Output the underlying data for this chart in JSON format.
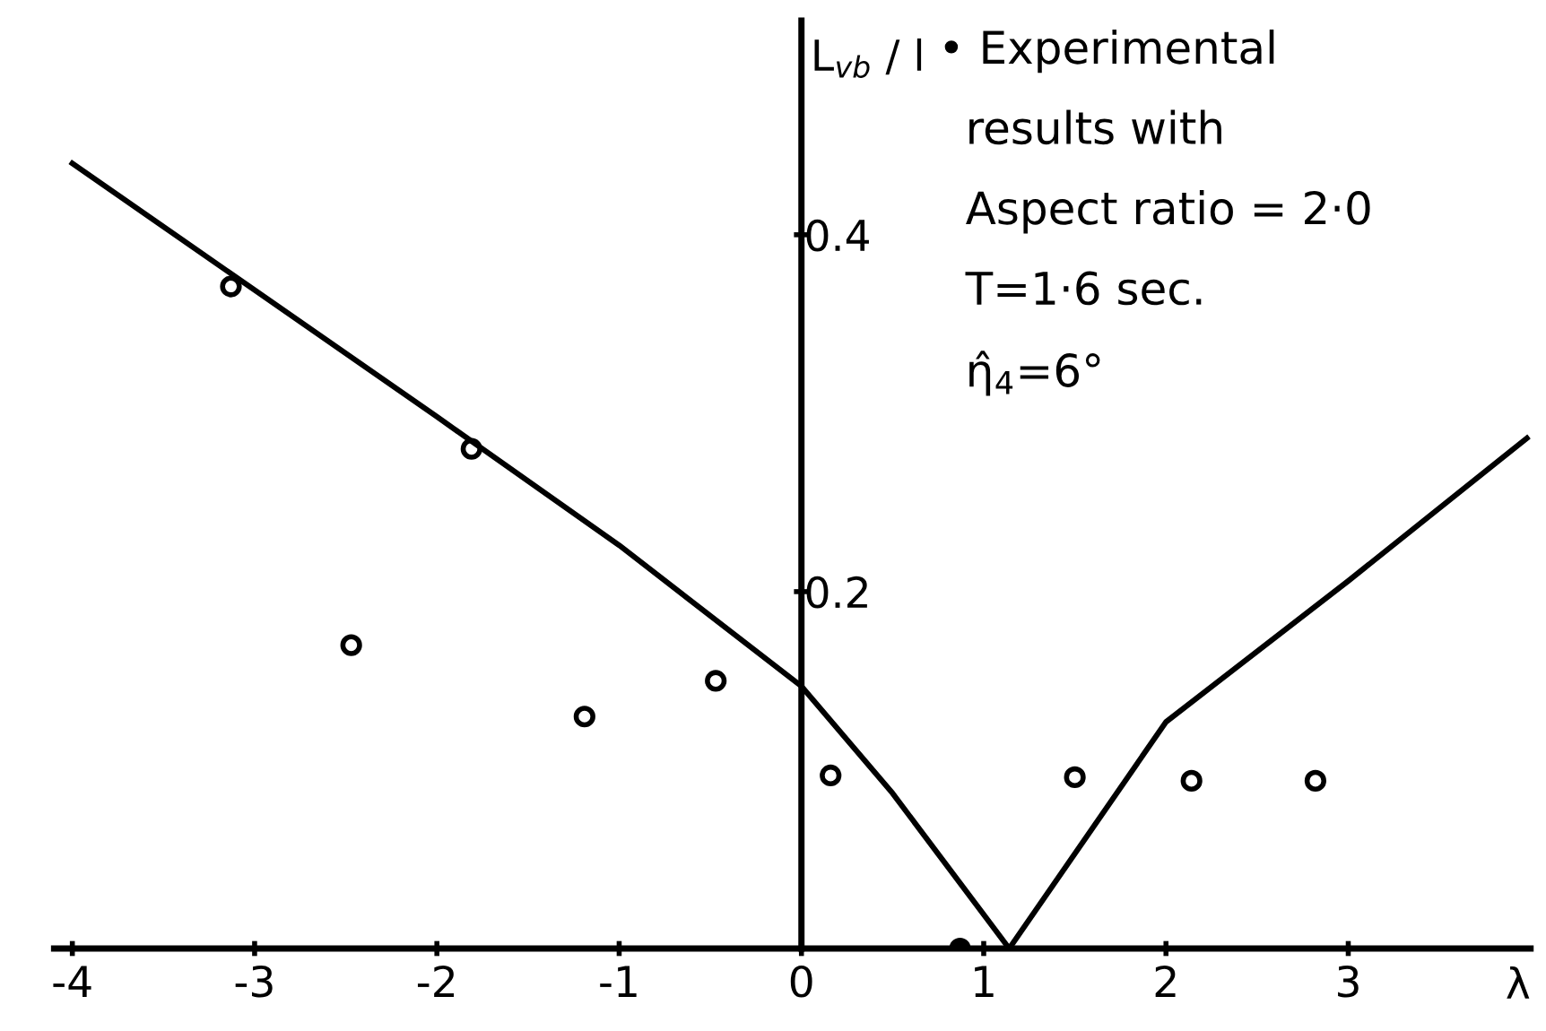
{
  "chart_data": {
    "type": "scatter",
    "xlabel": "λ",
    "ylabel": "L$_{vb}$ / l",
    "xlim": [
      -4.1,
      4.0
    ],
    "ylim": [
      0,
      0.52
    ],
    "xticks": [
      -4,
      -3,
      -2,
      -1,
      0,
      1,
      2,
      3
    ],
    "yticks": [
      0.2,
      0.4
    ],
    "grid": false,
    "series": [
      {
        "marker": "circle",
        "color": "#000000",
        "x": [
          -3.13,
          -2.47,
          -1.81,
          -1.19,
          -0.47,
          0.16,
          1.5,
          2.14,
          2.82
        ],
        "values": [
          0.371,
          0.17,
          0.28,
          0.13,
          0.15,
          0.097,
          0.096,
          0.094,
          0.094
        ]
      },
      {
        "marker": "circle",
        "color": "#000000",
        "x": [
          0.87
        ],
        "values": [
          0.0
        ]
      },
      {
        "type": "line",
        "marker": "none",
        "line_style": "solid",
        "color": "#000000",
        "x": [
          -4,
          -3,
          -2,
          -1,
          0,
          0.5,
          1.14,
          2,
          3,
          3.98
        ],
        "values": [
          0.44,
          0.369,
          0.298,
          0.226,
          0.147,
          0.087,
          0.0,
          0.127,
          0.206,
          0.286
        ]
      }
    ],
    "annotations": [
      "• Experimental",
      "results with",
      "Aspect ratio = 2·0",
      "T=1·6 sec.",
      "η̂$_{4}$=6°"
    ]
  }
}
